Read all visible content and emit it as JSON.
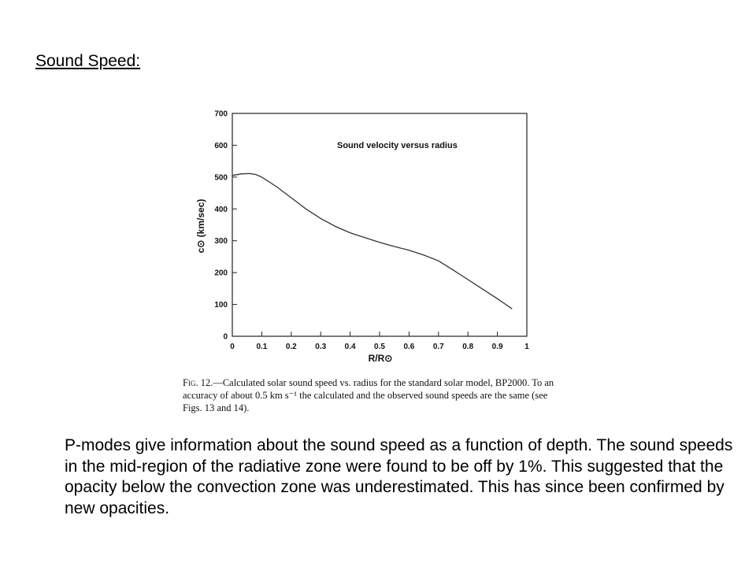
{
  "heading": "Sound Speed:",
  "chart_data": {
    "type": "line",
    "title": "Sound velocity versus radius",
    "xlabel": "R/R⊙",
    "ylabel": "c⊙ (km/sec)",
    "xlim": [
      0,
      1
    ],
    "ylim": [
      0,
      700
    ],
    "x_ticks": [
      "0",
      "0.1",
      "0.2",
      "0.3",
      "0.4",
      "0.5",
      "0.6",
      "0.7",
      "0.8",
      "0.9",
      "1"
    ],
    "y_ticks": [
      "0",
      "100",
      "200",
      "300",
      "400",
      "500",
      "600",
      "700"
    ],
    "grid": false,
    "series": [
      {
        "x": [
          0,
          0.03,
          0.06,
          0.08,
          0.1,
          0.15,
          0.2,
          0.25,
          0.3,
          0.35,
          0.4,
          0.45,
          0.5,
          0.55,
          0.6,
          0.65,
          0.7,
          0.75,
          0.8,
          0.85,
          0.9,
          0.95
        ],
        "y": [
          505,
          510,
          511,
          508,
          500,
          470,
          435,
          400,
          370,
          345,
          325,
          310,
          295,
          282,
          270,
          255,
          237,
          208,
          178,
          148,
          118,
          86
        ]
      }
    ]
  },
  "caption": {
    "fig_label": "Fig. 12.",
    "text": "—Calculated solar sound speed vs. radius for the standard solar model, BP2000. To an accuracy of about 0.5 km s⁻¹ the calculated and the observed sound speeds are the same (see Figs. 13 and 14)."
  },
  "body_text": "P-modes give information about the sound speed as a function of depth. The sound speeds in the mid-region of the radiative zone were found to be off by 1%. This suggested that the opacity below the convection zone was underestimated. This has since been confirmed by new opacities."
}
